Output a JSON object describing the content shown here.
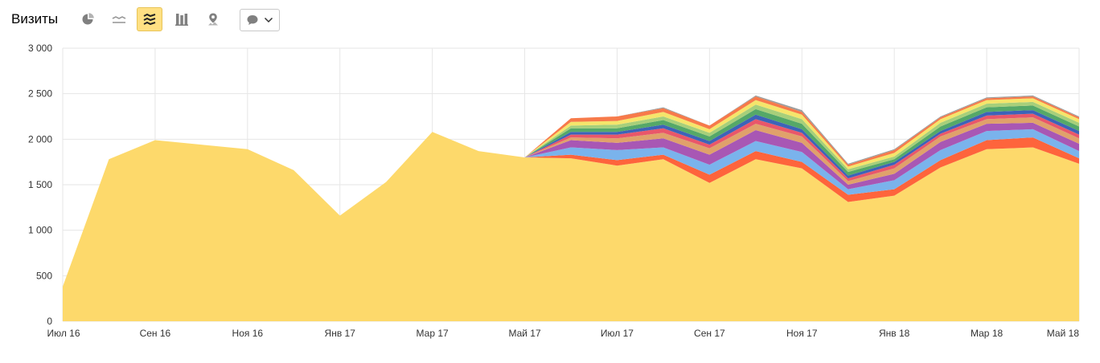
{
  "header": {
    "title": "Визиты",
    "icons": [
      "pie-chart-icon",
      "line-chart-icon",
      "area-chart-icon",
      "bar-chart-icon",
      "map-icon",
      "comment-icon",
      "chevron-down-icon"
    ],
    "active_view": "area-chart-icon"
  },
  "colors": {
    "accent": "#ffe083",
    "base_area": "#fdd96b",
    "icon": "#808080",
    "grid": "#e6e6e6"
  },
  "chart_data": {
    "type": "area",
    "stacked": true,
    "title": "",
    "xlabel": "",
    "ylabel": "",
    "ylim": [
      0,
      3000
    ],
    "yticks": [
      0,
      500,
      1000,
      1500,
      2000,
      2500,
      3000
    ],
    "ytick_labels": [
      "0",
      "500",
      "1 000",
      "1 500",
      "2 000",
      "2 500",
      "3 000"
    ],
    "x": [
      "2016-07",
      "2016-08",
      "2016-09",
      "2016-10",
      "2016-11",
      "2016-12",
      "2017-01",
      "2017-02",
      "2017-03",
      "2017-04",
      "2017-05",
      "2017-06",
      "2017-07",
      "2017-08",
      "2017-09",
      "2017-10",
      "2017-11",
      "2017-12",
      "2018-01",
      "2018-02",
      "2018-03",
      "2018-04",
      "2018-05"
    ],
    "xtick_labels": [
      "Июл 16",
      "",
      "Сен 16",
      "",
      "Ноя 16",
      "",
      "Янв 17",
      "",
      "Мар 17",
      "",
      "Май 17",
      "",
      "Июл 17",
      "",
      "Сен 17",
      "",
      "Ноя 17",
      "",
      "Янв 18",
      "",
      "Мар 18",
      "",
      "Май 18"
    ],
    "grid": true,
    "legend": "none",
    "series": [
      {
        "color": "#fdd96b",
        "values": [
          380,
          1780,
          1990,
          1940,
          1890,
          1660,
          1160,
          1530,
          2080,
          1870,
          1800,
          1790,
          1710,
          1780,
          1520,
          1780,
          1680,
          1310,
          1380,
          1690,
          1890,
          1910,
          1730
        ]
      },
      {
        "color": "#fe643c",
        "values": [
          0,
          0,
          0,
          0,
          0,
          0,
          0,
          0,
          0,
          0,
          0,
          40,
          60,
          50,
          90,
          90,
          70,
          80,
          70,
          80,
          100,
          110,
          60
        ]
      },
      {
        "color": "#7ab3ec",
        "values": [
          0,
          0,
          0,
          0,
          0,
          0,
          0,
          0,
          0,
          0,
          0,
          80,
          110,
          80,
          110,
          110,
          110,
          60,
          100,
          110,
          100,
          90,
          80
        ]
      },
      {
        "color": "#a857b4",
        "values": [
          0,
          0,
          0,
          0,
          0,
          0,
          0,
          0,
          0,
          0,
          0,
          80,
          80,
          100,
          110,
          120,
          100,
          50,
          70,
          90,
          80,
          70,
          80
        ]
      },
      {
        "color": "#e0a16b",
        "values": [
          0,
          0,
          0,
          0,
          0,
          0,
          0,
          0,
          0,
          0,
          0,
          30,
          50,
          60,
          70,
          70,
          70,
          40,
          60,
          60,
          50,
          60,
          60
        ]
      },
      {
        "color": "#e9576a",
        "values": [
          0,
          0,
          0,
          0,
          0,
          0,
          0,
          0,
          0,
          0,
          0,
          30,
          40,
          50,
          40,
          50,
          40,
          30,
          40,
          30,
          40,
          40,
          40
        ]
      },
      {
        "color": "#3d63b8",
        "values": [
          0,
          0,
          0,
          0,
          0,
          0,
          0,
          0,
          0,
          0,
          0,
          30,
          30,
          40,
          40,
          50,
          40,
          30,
          30,
          30,
          40,
          40,
          40
        ]
      },
      {
        "color": "#55a868",
        "values": [
          0,
          0,
          0,
          0,
          0,
          0,
          0,
          0,
          0,
          0,
          0,
          40,
          40,
          50,
          50,
          60,
          60,
          40,
          30,
          50,
          50,
          50,
          50
        ]
      },
      {
        "color": "#a7cf7a",
        "values": [
          0,
          0,
          0,
          0,
          0,
          0,
          0,
          0,
          0,
          0,
          0,
          30,
          40,
          40,
          40,
          50,
          50,
          30,
          30,
          40,
          40,
          40,
          40
        ]
      },
      {
        "color": "#f5e56b",
        "values": [
          0,
          0,
          0,
          0,
          0,
          0,
          0,
          0,
          0,
          0,
          0,
          40,
          40,
          50,
          40,
          50,
          50,
          30,
          40,
          40,
          40,
          40,
          40
        ]
      },
      {
        "color": "#f77a4a",
        "values": [
          0,
          0,
          0,
          0,
          0,
          0,
          0,
          0,
          0,
          0,
          0,
          40,
          50,
          40,
          40,
          40,
          30,
          20,
          30,
          20,
          20,
          20,
          20
        ]
      },
      {
        "color": "#9c9c9c",
        "values": [
          0,
          0,
          0,
          0,
          0,
          0,
          0,
          0,
          0,
          0,
          0,
          0,
          0,
          10,
          0,
          10,
          20,
          10,
          10,
          10,
          10,
          10,
          10
        ]
      }
    ]
  }
}
